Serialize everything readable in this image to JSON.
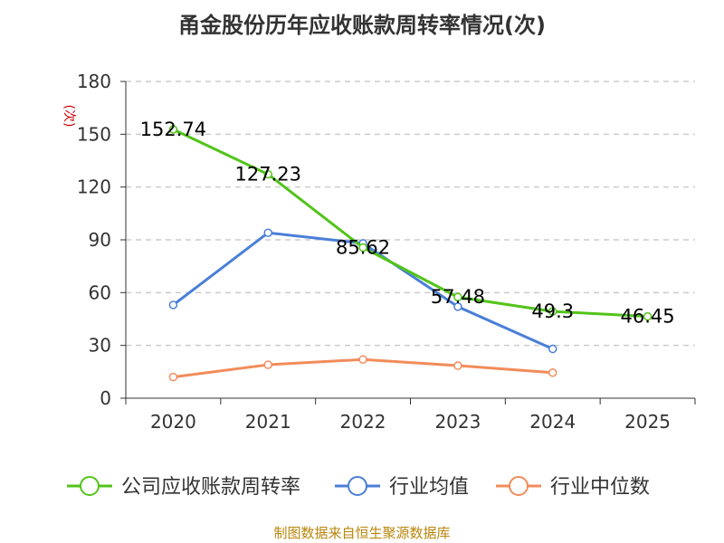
{
  "chart_data": {
    "type": "line",
    "title": "甬金股份历年应收账款周转率情况(次)",
    "ylabel": "(次)",
    "xlabel": "",
    "categories": [
      "2020",
      "2021",
      "2022",
      "2023",
      "2024",
      "2025"
    ],
    "ylim": [
      0,
      180
    ],
    "yticks": [
      0,
      30,
      60,
      90,
      120,
      150,
      180
    ],
    "grid": true,
    "legend_position": "bottom",
    "series": [
      {
        "name": "公司应收账款周转率",
        "color": "#52c41a",
        "values": [
          152.74,
          127.23,
          85.62,
          57.48,
          49.3,
          46.45
        ],
        "labels": [
          "152.74",
          "127.23",
          "85.62",
          "57.48",
          "49.3",
          "46.45"
        ]
      },
      {
        "name": "行业均值",
        "color": "#4a7fd8",
        "values": [
          53,
          94,
          88,
          52,
          28,
          null
        ]
      },
      {
        "name": "行业中位数",
        "color": "#f28c5a",
        "values": [
          12,
          19,
          22,
          18.5,
          14.5,
          null
        ]
      }
    ]
  },
  "source": "制图数据来自恒生聚源数据库"
}
